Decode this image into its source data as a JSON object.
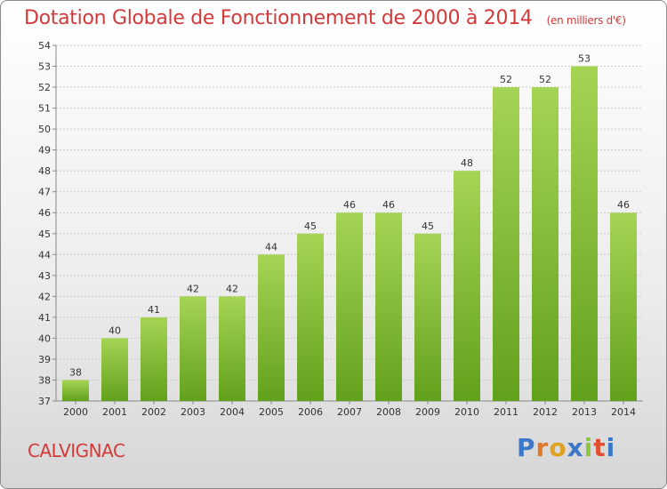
{
  "header": {
    "title": "Dotation Globale de Fonctionnement de 2000 à 2014",
    "units": "(en milliers d'€)"
  },
  "footer": {
    "commune": "CALVIGNAC",
    "logo_letters": [
      "P",
      "r",
      "o",
      "x",
      "i",
      "t",
      "i"
    ],
    "logo_colors": [
      "#3c78c8",
      "#e0782a",
      "#e0a020",
      "#3c78c8",
      "#8cc63e",
      "#e05030",
      "#3c78c8"
    ]
  },
  "colors": {
    "title": "#d23a3a",
    "bar_top": "#a6d455",
    "bar_bottom": "#62a11b",
    "grid": "#c8c8c8",
    "axis_text": "#333333"
  },
  "chart_data": {
    "type": "bar",
    "title": "Dotation Globale de Fonctionnement de 2000 à 2014",
    "subtitle": "(en milliers d'€)",
    "xlabel": "",
    "ylabel": "",
    "categories": [
      "2000",
      "2001",
      "2002",
      "2003",
      "2004",
      "2005",
      "2006",
      "2007",
      "2008",
      "2009",
      "2010",
      "2011",
      "2012",
      "2013",
      "2014"
    ],
    "values": [
      38,
      40,
      41,
      42,
      42,
      44,
      45,
      46,
      46,
      45,
      48,
      52,
      52,
      53,
      46
    ],
    "ylim": [
      37,
      54
    ],
    "yticks": [
      37,
      38,
      39,
      40,
      41,
      42,
      43,
      44,
      45,
      46,
      47,
      48,
      49,
      50,
      51,
      52,
      53,
      54
    ],
    "grid": true,
    "legend": "none"
  }
}
